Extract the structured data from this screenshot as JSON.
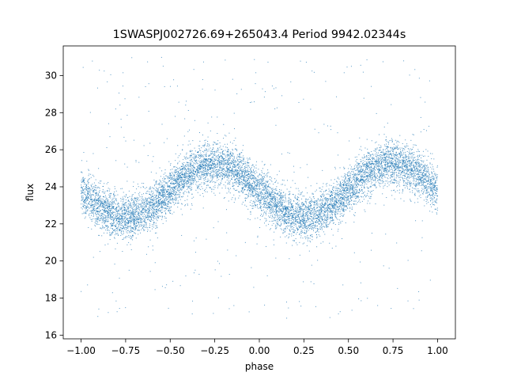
{
  "chart_data": {
    "type": "scatter",
    "title": "1SWASPJ002726.69+265043.4 Period 9942.02344s",
    "xlabel": "phase",
    "ylabel": "flux",
    "xlim": [
      -1.1,
      1.1
    ],
    "ylim": [
      15.8,
      31.6
    ],
    "x_ticks": [
      -1.0,
      -0.75,
      -0.5,
      -0.25,
      0.0,
      0.25,
      0.5,
      0.75,
      1.0
    ],
    "x_tick_labels": [
      "−1.00",
      "−0.75",
      "−0.50",
      "−0.25",
      "0.00",
      "0.25",
      "0.50",
      "0.75",
      "1.00"
    ],
    "y_ticks": [
      16,
      18,
      20,
      22,
      24,
      26,
      28,
      30
    ],
    "y_tick_labels": [
      "16",
      "18",
      "20",
      "22",
      "24",
      "26",
      "28",
      "30"
    ],
    "grid": false,
    "series": [
      {
        "color": "#1f77b4",
        "marker": "point",
        "model": {
          "form": "sinusoid",
          "mean_flux": 23.8,
          "amplitude": 1.45,
          "period_phase": 1.0,
          "peak_phase": [
            -0.25,
            0.75
          ],
          "trough_phase": [
            -0.72,
            0.27
          ],
          "band_half_width": 1.3
        },
        "outlier_range": [
          16.8,
          31.0
        ],
        "approx_point_count": 60000
      }
    ]
  }
}
